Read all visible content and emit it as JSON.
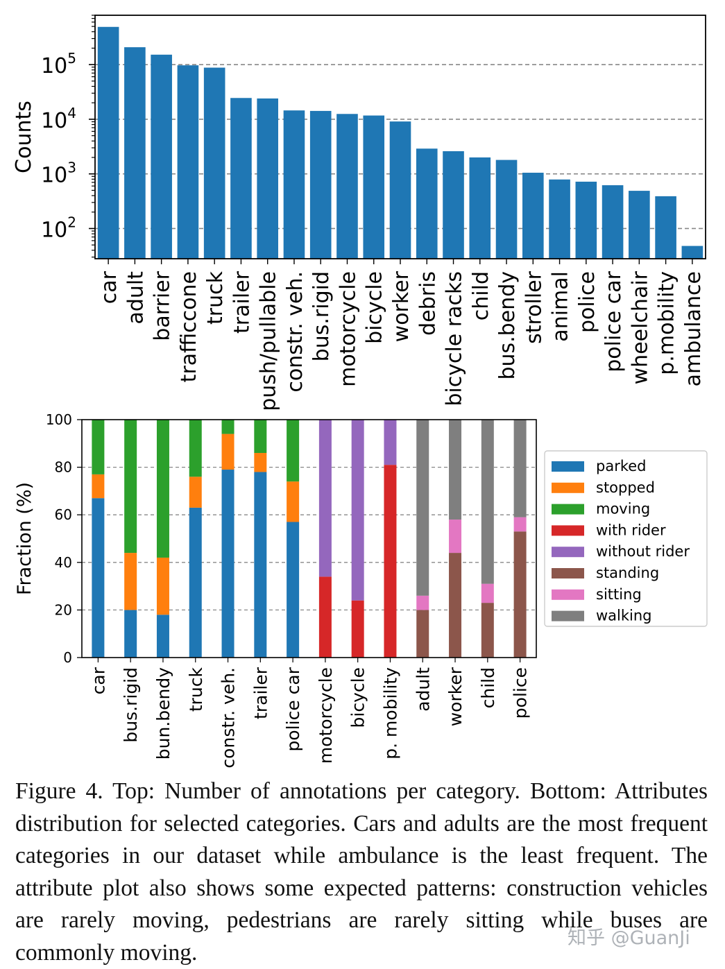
{
  "chart_data": [
    {
      "type": "bar",
      "ylabel": "Counts",
      "yscale": "log",
      "ylim": [
        28,
        800000
      ],
      "yticks": [
        {
          "value": 100,
          "base": "10",
          "exp": "2"
        },
        {
          "value": 1000,
          "base": "10",
          "exp": "3"
        },
        {
          "value": 10000,
          "base": "10",
          "exp": "4"
        },
        {
          "value": 100000,
          "base": "10",
          "exp": "5"
        }
      ],
      "grid": "horizontal-dashed",
      "color": "#1f77b4",
      "categories": [
        "car",
        "adult",
        "barrier",
        "trafficcone",
        "truck",
        "trailer",
        "push/pullable",
        "constr. veh.",
        "bus.rigid",
        "motorcycle",
        "bicycle",
        "worker",
        "debris",
        "bicycle racks",
        "child",
        "bus.bendy",
        "stroller",
        "animal",
        "police",
        "police car",
        "wheelchair",
        "p.mobility",
        "ambulance"
      ],
      "values": [
        490000,
        208000,
        152000,
        97000,
        88000,
        24500,
        24000,
        14500,
        14200,
        12500,
        11700,
        9100,
        2900,
        2600,
        2000,
        1800,
        1050,
        790,
        720,
        620,
        490,
        390,
        48
      ]
    },
    {
      "type": "bar",
      "stacked": true,
      "ylabel": "Fraction (%)",
      "ylim": [
        0,
        100
      ],
      "yticks": [
        0,
        20,
        40,
        60,
        80,
        100
      ],
      "grid": "horizontal-dashed",
      "legend_position": "right",
      "categories": [
        "car",
        "bus.rigid",
        "bun.bendy",
        "truck",
        "constr. veh.",
        "trailer",
        "police car",
        "motorcycle",
        "bicycle",
        "p. mobility",
        "adult",
        "worker",
        "child",
        "police"
      ],
      "series": [
        {
          "name": "parked",
          "color": "#1f77b4",
          "values": [
            67,
            20,
            18,
            63,
            79,
            78,
            57,
            0,
            0,
            0,
            0,
            0,
            0,
            0
          ]
        },
        {
          "name": "stopped",
          "color": "#ff7f0e",
          "values": [
            10,
            24,
            24,
            13,
            15,
            8,
            17,
            0,
            0,
            0,
            0,
            0,
            0,
            0
          ]
        },
        {
          "name": "moving",
          "color": "#2ca02c",
          "values": [
            23,
            56,
            58,
            24,
            6,
            14,
            26,
            0,
            0,
            0,
            0,
            0,
            0,
            0
          ]
        },
        {
          "name": "with rider",
          "color": "#d62728",
          "values": [
            0,
            0,
            0,
            0,
            0,
            0,
            0,
            34,
            24,
            81,
            0,
            0,
            0,
            0
          ]
        },
        {
          "name": "without rider",
          "color": "#9467bd",
          "values": [
            0,
            0,
            0,
            0,
            0,
            0,
            0,
            66,
            76,
            19,
            0,
            0,
            0,
            0
          ]
        },
        {
          "name": "standing",
          "color": "#8c564b",
          "values": [
            0,
            0,
            0,
            0,
            0,
            0,
            0,
            0,
            0,
            0,
            20,
            44,
            23,
            53
          ]
        },
        {
          "name": "sitting",
          "color": "#e377c2",
          "values": [
            0,
            0,
            0,
            0,
            0,
            0,
            0,
            0,
            0,
            0,
            6,
            14,
            8,
            6
          ]
        },
        {
          "name": "walking",
          "color": "#7f7f7f",
          "values": [
            0,
            0,
            0,
            0,
            0,
            0,
            0,
            0,
            0,
            0,
            74,
            42,
            69,
            41
          ]
        }
      ]
    }
  ],
  "caption": "Figure 4.  Top: Number of annotations per category. Bottom: Attributes distribution for selected categories.  Cars and adults are the most frequent categories in our dataset while ambulance is the least frequent.  The attribute plot also shows some expected patterns: construction vehicles are rarely moving, pedestrians are rarely sitting while buses are commonly moving.",
  "watermark": "知乎 @GuanJi"
}
